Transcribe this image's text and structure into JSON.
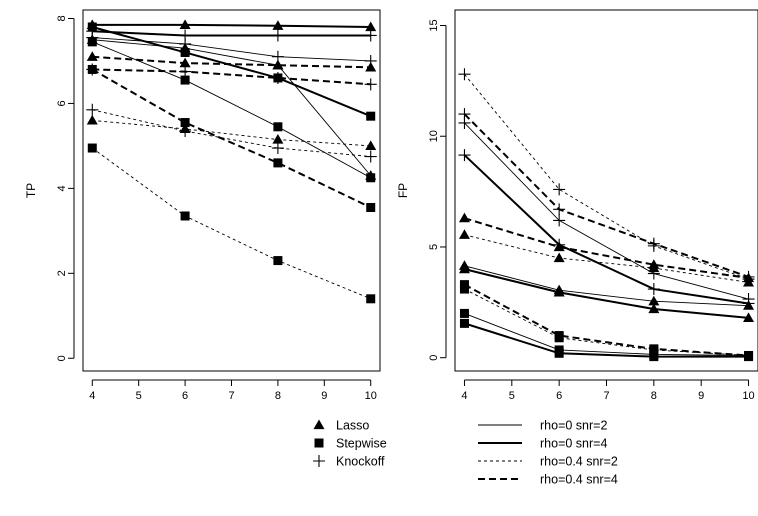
{
  "chart_data": [
    {
      "type": "line",
      "ylabel": "TP",
      "xlabel": "",
      "x": [
        4,
        6,
        8,
        10
      ],
      "xticks": [
        "4",
        "5",
        "6",
        "7",
        "8",
        "9",
        "10"
      ],
      "yticks": [
        "0",
        "2",
        "4",
        "6",
        "8"
      ],
      "xlim": [
        3.8,
        10.2
      ],
      "ylim": [
        -0.3,
        8.2
      ],
      "series": [
        {
          "method": "Lasso",
          "setting": "rho=0 snr=2",
          "values": [
            7.5,
            7.3,
            6.9,
            4.3
          ]
        },
        {
          "method": "Lasso",
          "setting": "rho=0 snr=4",
          "values": [
            7.85,
            7.85,
            7.83,
            7.8
          ]
        },
        {
          "method": "Lasso",
          "setting": "rho=0.4 snr=2",
          "values": [
            5.6,
            5.4,
            5.15,
            5.0
          ]
        },
        {
          "method": "Lasso",
          "setting": "rho=0.4 snr=4",
          "values": [
            7.1,
            6.95,
            6.9,
            6.85
          ]
        },
        {
          "method": "Stepwise",
          "setting": "rho=0 snr=2",
          "values": [
            7.45,
            6.55,
            5.45,
            4.25
          ]
        },
        {
          "method": "Stepwise",
          "setting": "rho=0 snr=4",
          "values": [
            7.8,
            7.2,
            6.6,
            5.7
          ]
        },
        {
          "method": "Stepwise",
          "setting": "rho=0.4 snr=2",
          "values": [
            4.95,
            3.35,
            2.3,
            1.4
          ]
        },
        {
          "method": "Stepwise",
          "setting": "rho=0.4 snr=4",
          "values": [
            6.8,
            5.55,
            4.6,
            3.55
          ]
        },
        {
          "method": "Knockoff",
          "setting": "rho=0 snr=2",
          "values": [
            7.55,
            7.4,
            7.1,
            7.0
          ]
        },
        {
          "method": "Knockoff",
          "setting": "rho=0 snr=4",
          "values": [
            7.7,
            7.6,
            7.6,
            7.6
          ]
        },
        {
          "method": "Knockoff",
          "setting": "rho=0.4 snr=2",
          "values": [
            5.85,
            5.35,
            4.95,
            4.75
          ]
        },
        {
          "method": "Knockoff",
          "setting": "rho=0.4 snr=4",
          "values": [
            6.8,
            6.75,
            6.6,
            6.45
          ]
        }
      ]
    },
    {
      "type": "line",
      "ylabel": "FP",
      "xlabel": "",
      "x": [
        4,
        6,
        8,
        10
      ],
      "xticks": [
        "4",
        "5",
        "6",
        "7",
        "8",
        "9",
        "10"
      ],
      "yticks": [
        "0",
        "5",
        "10",
        "15"
      ],
      "xlim": [
        3.8,
        10.2
      ],
      "ylim": [
        -0.6,
        15.7
      ],
      "series": [
        {
          "method": "Lasso",
          "setting": "rho=0 snr=2",
          "values": [
            4.15,
            3.05,
            2.55,
            2.35
          ]
        },
        {
          "method": "Lasso",
          "setting": "rho=0 snr=4",
          "values": [
            4.0,
            2.95,
            2.2,
            1.8
          ]
        },
        {
          "method": "Lasso",
          "setting": "rho=0.4 snr=2",
          "values": [
            5.55,
            4.5,
            4.05,
            3.4
          ]
        },
        {
          "method": "Lasso",
          "setting": "rho=0.4 snr=4",
          "values": [
            6.3,
            5.0,
            4.2,
            3.6
          ]
        },
        {
          "method": "Stepwise",
          "setting": "rho=0 snr=2",
          "values": [
            2.0,
            0.35,
            0.15,
            0.1
          ]
        },
        {
          "method": "Stepwise",
          "setting": "rho=0 snr=4",
          "values": [
            1.55,
            0.2,
            0.05,
            0.05
          ]
        },
        {
          "method": "Stepwise",
          "setting": "rho=0.4 snr=2",
          "values": [
            3.1,
            0.9,
            0.35,
            0.1
          ]
        },
        {
          "method": "Stepwise",
          "setting": "rho=0.4 snr=4",
          "values": [
            3.3,
            1.0,
            0.4,
            0.1
          ]
        },
        {
          "method": "Knockoff",
          "setting": "rho=0 snr=2",
          "values": [
            10.6,
            6.2,
            3.8,
            2.65
          ]
        },
        {
          "method": "Knockoff",
          "setting": "rho=0 snr=4",
          "values": [
            9.15,
            5.1,
            3.1,
            2.45
          ]
        },
        {
          "method": "Knockoff",
          "setting": "rho=0.4 snr=2",
          "values": [
            12.8,
            7.6,
            5.05,
            3.55
          ]
        },
        {
          "method": "Knockoff",
          "setting": "rho=0.4 snr=4",
          "values": [
            11.0,
            6.7,
            5.15,
            3.65
          ]
        }
      ]
    }
  ],
  "legend": {
    "methods": [
      {
        "label": "Lasso",
        "marker": "triangle"
      },
      {
        "label": "Stepwise",
        "marker": "square"
      },
      {
        "label": "Knockoff",
        "marker": "plus"
      }
    ],
    "settings": [
      {
        "label": "rho=0 snr=2",
        "style": "thin-solid"
      },
      {
        "label": "rho=0 snr=4",
        "style": "thick-solid"
      },
      {
        "label": "rho=0.4 snr=2",
        "style": "thin-dashed"
      },
      {
        "label": "rho=0.4 snr=4",
        "style": "thick-dashed"
      }
    ]
  },
  "colors": {
    "ink": "#000000",
    "background": "#ffffff"
  }
}
